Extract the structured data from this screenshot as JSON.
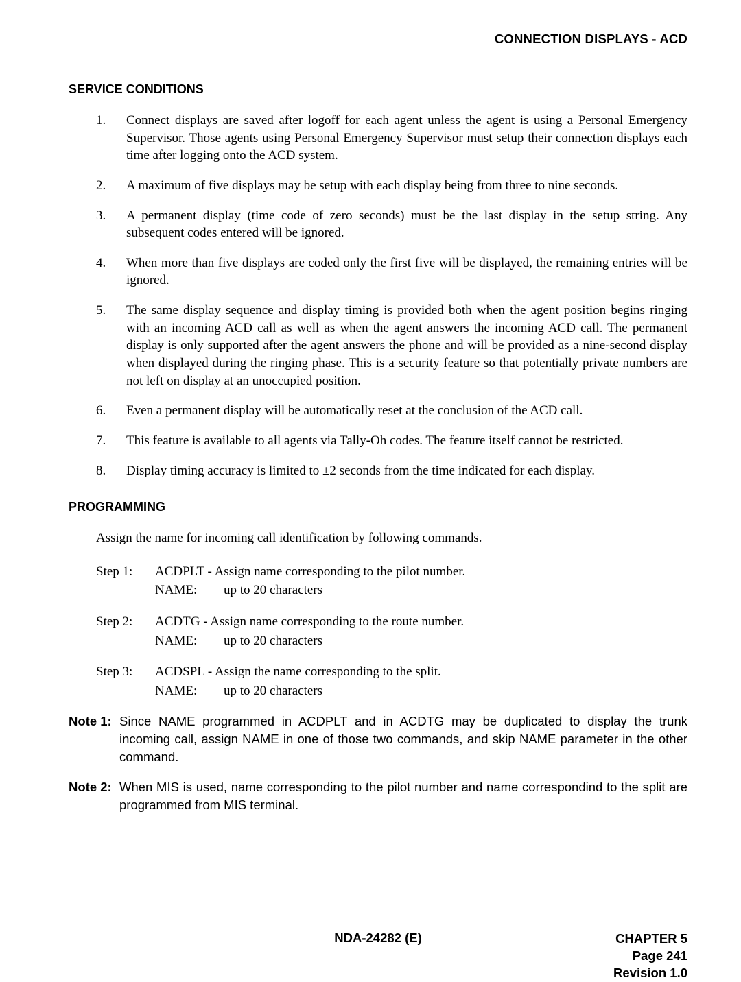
{
  "header": {
    "title": "CONNECTION DISPLAYS - ACD"
  },
  "sections": {
    "service_conditions": {
      "heading": "SERVICE CONDITIONS",
      "items": [
        "Connect displays are saved after logoff for each agent unless the agent is using a Personal Emergency Supervisor. Those agents using Personal Emergency Supervisor must setup their connection displays each time after logging onto the ACD system.",
        "A maximum of five displays may be setup with each display being from three to nine seconds.",
        "A permanent display (time code of zero seconds) must be the last display in the setup string. Any subsequent codes entered will be ignored.",
        "When more than five displays are coded only the first five will be displayed, the remaining entries will be ignored.",
        "The same display sequence and display timing is provided both when the agent position begins ringing with an incoming ACD call as well as when the agent answers the incoming ACD call. The permanent display is only supported after the agent answers the phone and will be provided as a nine-second display when displayed during the ringing phase. This is a security feature so that potentially private numbers are not left on display at an unoccupied position.",
        "Even a permanent display will be automatically reset at the conclusion of the ACD call.",
        "This feature is available to all agents via Tally-Oh codes. The feature itself cannot be restricted.",
        "Display timing accuracy is limited to ±2 seconds from the time indicated for each display."
      ]
    },
    "programming": {
      "heading": "PROGRAMMING",
      "intro": "Assign the name for incoming call identification by following commands.",
      "steps": [
        {
          "label": "Step 1:",
          "line1": "ACDPLT - Assign name corresponding to the pilot number.",
          "name_label": "NAME:",
          "name_value": "up to 20 characters"
        },
        {
          "label": "Step 2:",
          "line1": "ACDTG - Assign name corresponding to the route number.",
          "name_label": "NAME:",
          "name_value": "up to 20 characters"
        },
        {
          "label": "Step 3:",
          "line1": "ACDSPL - Assign the name corresponding to the split.",
          "name_label": "NAME:",
          "name_value": "up to 20 characters"
        }
      ],
      "notes": [
        {
          "label": "Note 1:",
          "text": "Since NAME programmed in ACDPLT and in ACDTG may be duplicated to display the trunk incoming call, assign NAME in one of those two commands, and skip NAME parameter in the other command."
        },
        {
          "label": "Note 2:",
          "text": "When MIS is used, name corresponding to the pilot number and name correspondind to the split are programmed from MIS terminal."
        }
      ]
    }
  },
  "footer": {
    "center": "NDA-24282 (E)",
    "right_lines": [
      "CHAPTER 5",
      "Page 241",
      "Revision 1.0"
    ]
  }
}
